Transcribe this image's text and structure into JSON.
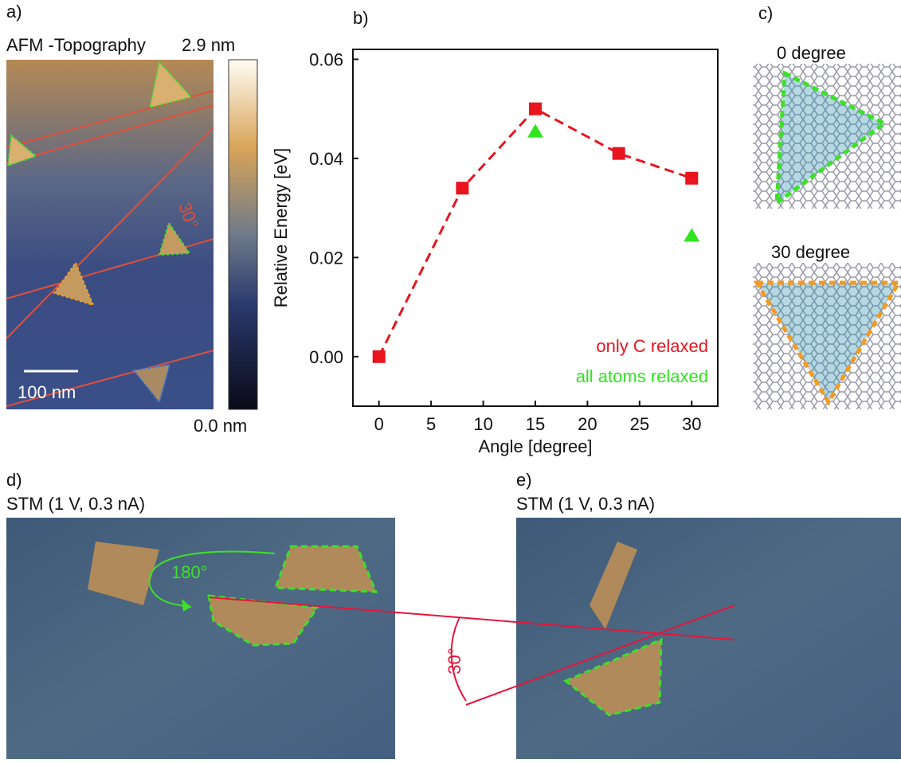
{
  "panels": {
    "a": {
      "label": "a)",
      "title": "AFM -Topography",
      "scale_max": "2.9 nm",
      "scale_min": "0.0 nm",
      "scale_bar": "100 nm",
      "angle": "30°"
    },
    "b": {
      "label": "b)"
    },
    "c": {
      "label": "c)",
      "top": "0 degree",
      "bottom": "30 degree"
    },
    "d": {
      "label": "d)",
      "title": "STM (1 V, 0.3 nA)",
      "rotation": "180°"
    },
    "e": {
      "label": "e)",
      "title": "STM (1 V, 0.3 nA)"
    },
    "crossing_angle": "30°"
  },
  "chart_data": {
    "type": "line",
    "xlabel": "Angle [degree]",
    "ylabel": "Relative Energy [eV]",
    "xlim": [
      -2.5,
      32.5
    ],
    "ylim": [
      -0.01,
      0.062
    ],
    "xticks": [
      0,
      5,
      10,
      15,
      20,
      25,
      30
    ],
    "yticks": [
      {
        "value": 0,
        "label": "0.00"
      },
      {
        "value": 0.02,
        "label": "0.02"
      },
      {
        "value": 0.04,
        "label": "0.04"
      },
      {
        "value": 0.06,
        "label": "0.06"
      }
    ],
    "legend": "lower right",
    "series": [
      {
        "name": "only C relaxed",
        "color": "#e8141e",
        "marker": "square",
        "linestyle": "dashed",
        "x": [
          0,
          8,
          15,
          23,
          30
        ],
        "values": [
          0,
          0.034,
          0.05,
          0.041,
          0.036
        ]
      },
      {
        "name": "all atoms relaxed",
        "color": "#2ee51e",
        "marker": "triangle",
        "linestyle": "none",
        "x": [
          15,
          30
        ],
        "values": [
          0.0455,
          0.0245
        ]
      }
    ]
  }
}
